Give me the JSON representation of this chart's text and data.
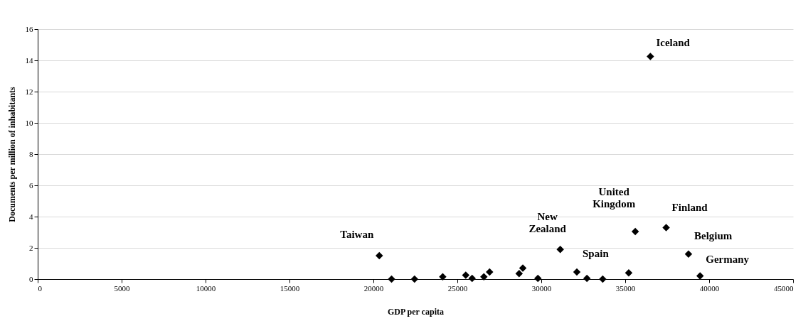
{
  "chart_data": {
    "type": "scatter",
    "xlabel": "GDP per capita",
    "ylabel": "Documents per million of inhabitants",
    "series": [
      {
        "color": "#000000",
        "x": [
          20350,
          21080,
          22450,
          24130,
          25500,
          25880,
          26580,
          26920,
          28680,
          28900,
          29800,
          31130,
          32120,
          32720,
          33660,
          35210,
          35600,
          36500,
          37440,
          38770,
          39460
        ],
        "values": [
          1.5,
          0.0,
          0.0,
          0.15,
          0.25,
          0.05,
          0.15,
          0.45,
          0.35,
          0.7,
          0.05,
          1.9,
          0.45,
          0.05,
          0.0,
          0.4,
          3.05,
          14.25,
          3.3,
          1.6,
          0.2
        ]
      }
    ],
    "xlim": [
      0,
      45000
    ],
    "xticks": [
      0,
      5000,
      10000,
      15000,
      20000,
      25000,
      30000,
      35000,
      40000,
      45000
    ],
    "ylim": [
      0,
      16
    ],
    "yticks": [
      0,
      2,
      4,
      6,
      8,
      10,
      12,
      14,
      16
    ],
    "grid": "y",
    "marker": "diamond",
    "annotations": [
      {
        "text": "Taiwan",
        "x": 20350,
        "y": 1.5
      },
      {
        "text": "New Zealand",
        "x": 31130,
        "y": 1.9
      },
      {
        "text": "Spain",
        "x": 32120,
        "y": 0.45
      },
      {
        "text": "United Kingdom",
        "x": 35600,
        "y": 3.05
      },
      {
        "text": "Iceland",
        "x": 36500,
        "y": 14.25
      },
      {
        "text": "Finland",
        "x": 37440,
        "y": 3.3
      },
      {
        "text": "Belgium",
        "x": 38770,
        "y": 1.6
      },
      {
        "text": "Germany",
        "x": 39460,
        "y": 0.2
      }
    ]
  }
}
